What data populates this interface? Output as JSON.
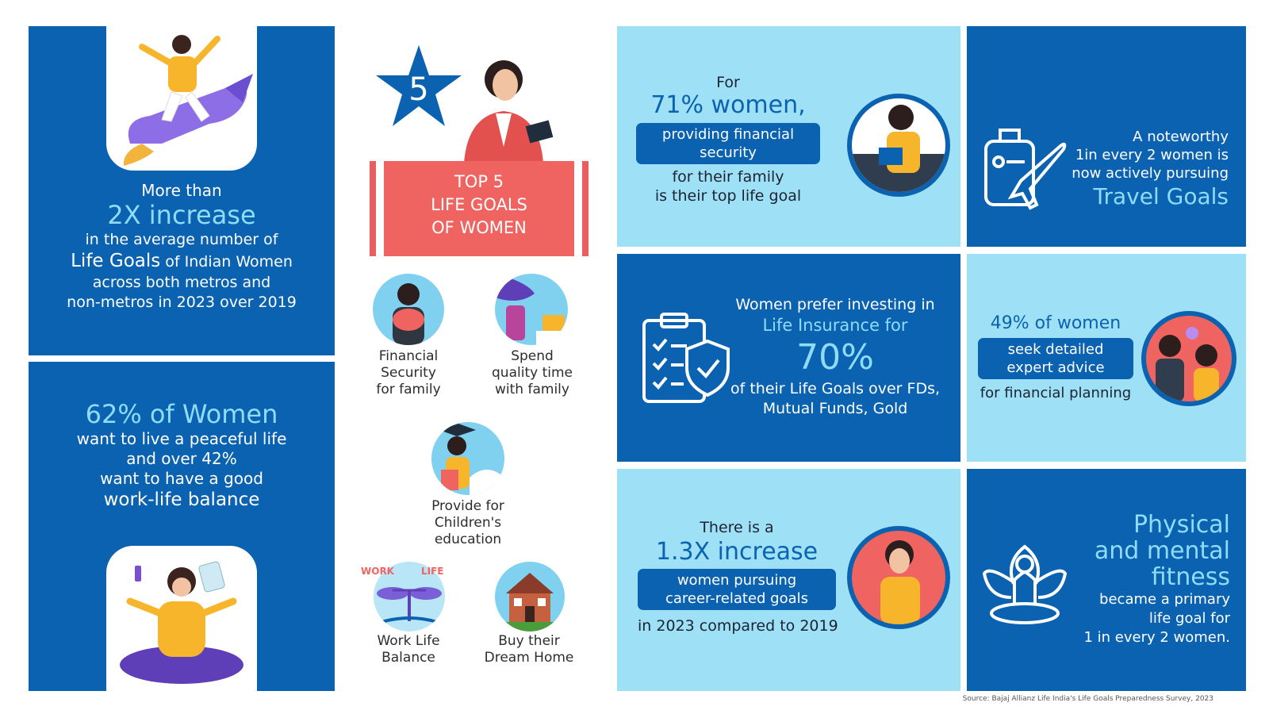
{
  "left_top": {
    "line1": "More than",
    "big": "2X increase",
    "line2": "in the average number of",
    "line3_strong": "Life Goals",
    "line3_rest": " of Indian Women",
    "line4": "across both metros and",
    "line5": "non-metros in 2023 over 2019"
  },
  "left_bottom": {
    "big": "62% of Women",
    "line1": "want to live a peaceful life",
    "line2": "and over 42%",
    "line3": "want to have a good",
    "line4": "work-life balance"
  },
  "top5": {
    "star_number": "5",
    "banner_line1": "TOP 5",
    "banner_line2": "LIFE GOALS",
    "banner_line3": "OF WOMEN",
    "items": [
      {
        "label1": "Financial",
        "label2": "Security",
        "label3": "for family"
      },
      {
        "label1": "Spend",
        "label2": "quality time",
        "label3": "with family"
      },
      {
        "label1": "Provide for",
        "label2": "Children's",
        "label3": "education"
      },
      {
        "label1": "Work Life",
        "label2": "Balance"
      },
      {
        "label1": "Buy their",
        "label2": "Dream Home"
      }
    ],
    "scale_left": "WORK",
    "scale_right": "LIFE"
  },
  "card_71": {
    "for": "For",
    "big": "71% women,",
    "pill_line1": "providing financial",
    "pill_line2": "security",
    "line1": "for their family",
    "line2": "is their top life goal"
  },
  "card_travel": {
    "line1": "A noteworthy",
    "line2": "1in every 2 women is",
    "line3": "now actively pursuing",
    "big": "Travel Goals"
  },
  "card_insurance": {
    "line1": "Women prefer investing in",
    "line2": "Life Insurance for",
    "big": "70%",
    "line3": "of their Life Goals over FDs,",
    "line4": "Mutual Funds, Gold"
  },
  "card_49": {
    "big": "49% of women",
    "pill_line1": "seek detailed",
    "pill_line2": "expert advice",
    "line1": "for financial planning"
  },
  "card_career": {
    "line1": "There is a",
    "big": "1.3X increase",
    "pill_line1": "women pursuing",
    "pill_line2": "career-related goals",
    "line2": "in 2023 compared to 2019"
  },
  "card_fitness": {
    "big1": "Physical",
    "big2": "and mental",
    "big3": "fitness",
    "line1": "became a primary",
    "line2": "life goal for",
    "line3": "1 in every 2 women."
  },
  "source": "Source: Bajaj Allianz Life India's Life Goals Preparedness Survey, 2023",
  "colors": {
    "dark_blue": "#0a62b0",
    "light_blue": "#9ee0f5",
    "accent": "#8fdcf7",
    "coral": "#e95f5f"
  }
}
